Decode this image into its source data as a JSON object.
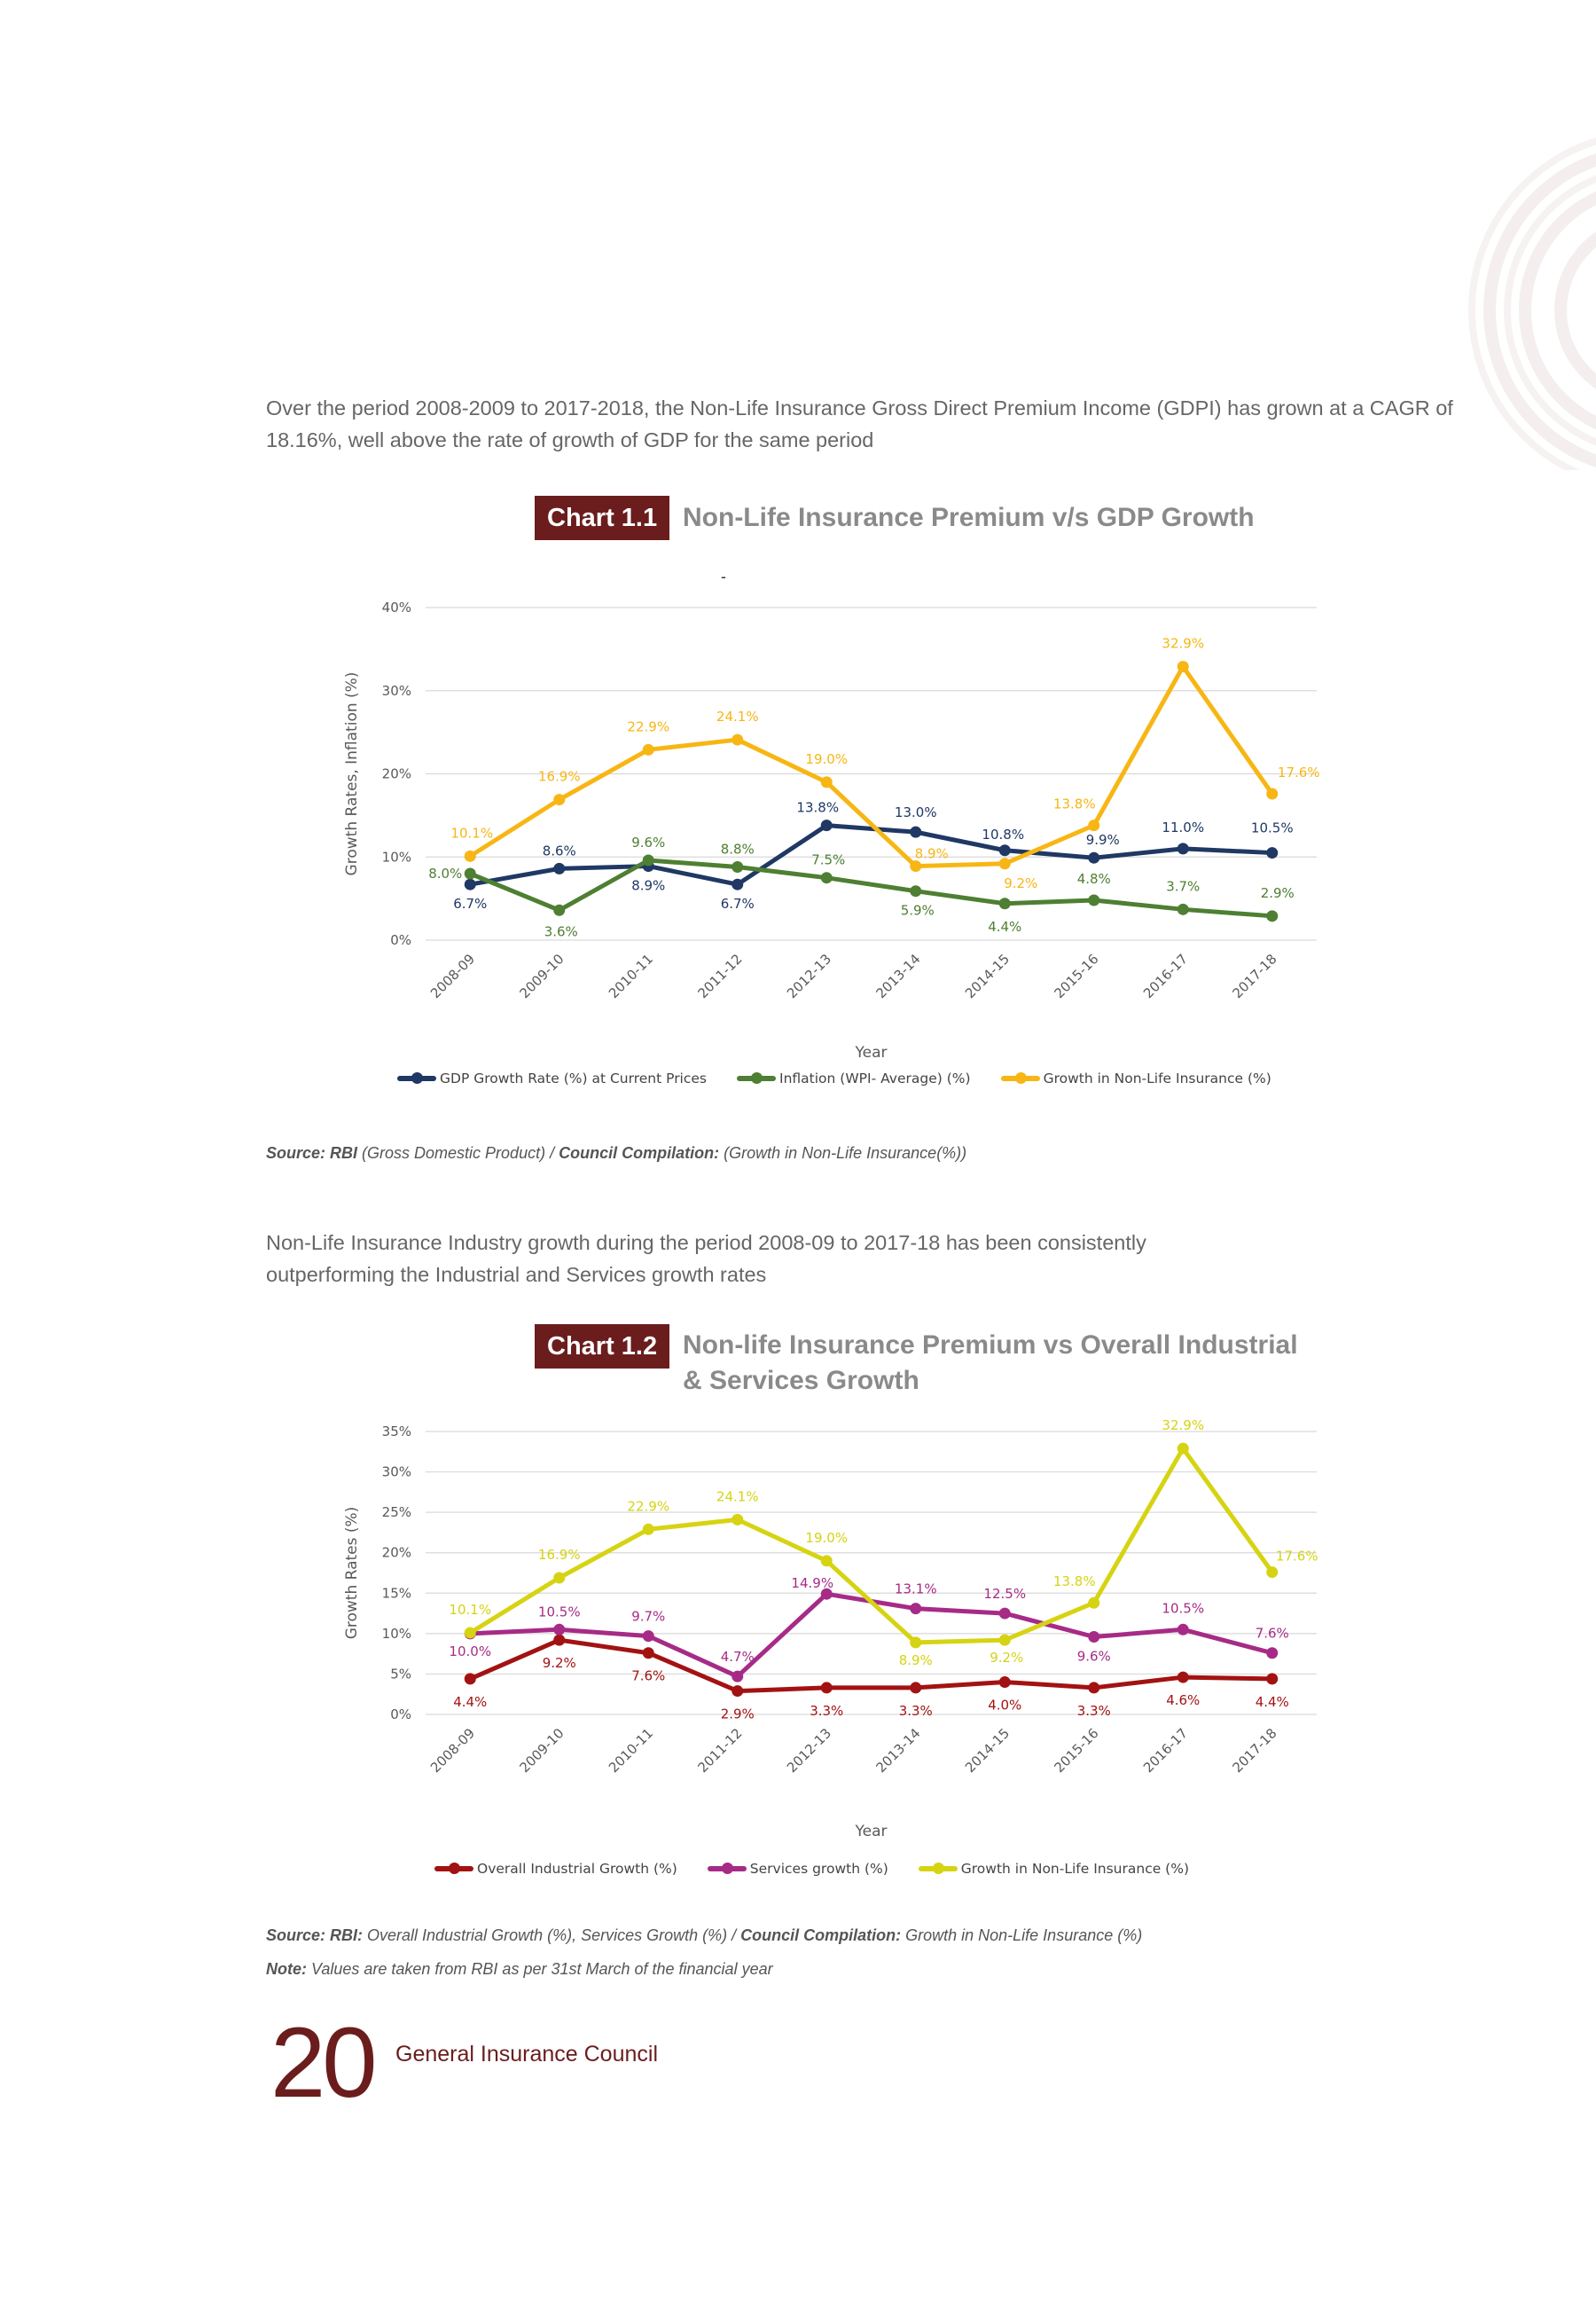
{
  "intro_text_1": "Over the period 2008-2009 to 2017-2018, the Non-Life Insurance Gross Direct Premium Income (GDPI) has grown at a CAGR of 18.16%, well above the rate of growth of GDP for the same period",
  "intro_text_2": "Non-Life Insurance Industry growth during the period 2008-09 to 2017-18 has been consistently outperforming the Industrial and Services growth rates",
  "chart1_badge": "Chart 1.1",
  "chart2_badge": "Chart 1.2",
  "chart1_dash": "-",
  "source1": {
    "label1": "Source: RBI",
    "text1": " (Gross Domestic Product) / ",
    "label2": "Council Compilation:",
    "text2": " (Growth in Non-Life Insurance(%))"
  },
  "source2": {
    "label1": "Source: RBI:",
    "text1": " Overall Industrial Growth (%), Services Growth (%) / ",
    "label2": "Council Compilation:",
    "text2": " Growth in Non-Life Insurance (%)"
  },
  "note": {
    "label": "Note:",
    "text": " Values are taken from RBI as per 31st March of the financial year"
  },
  "footer": {
    "page_number": "20",
    "title": "General Insurance Council"
  },
  "chart_data": [
    {
      "type": "line",
      "title": "Non-Life Insurance Premium v/s GDP Growth",
      "xlabel": "Year",
      "ylabel": "Growth Rates, Inflation (%)",
      "ylim": [
        0,
        40
      ],
      "yticks": [
        "0%",
        "10%",
        "20%",
        "30%",
        "40%"
      ],
      "grid": true,
      "legend_position": "bottom",
      "categories": [
        "2008-09",
        "2009-10",
        "2010-11",
        "2011-12",
        "2012-13",
        "2013-14",
        "2014-15",
        "2015-16",
        "2016-17",
        "2017-18"
      ],
      "series": [
        {
          "name": "GDP Growth Rate (%) at Current Prices",
          "color": "#1f3864",
          "values": [
            6.7,
            8.6,
            8.9,
            6.7,
            13.8,
            13.0,
            10.8,
            9.9,
            11.0,
            10.5
          ],
          "labels": [
            "6.7%",
            "8.6%",
            "8.9%",
            "6.7%",
            "13.8%",
            "13.0%",
            "10.8%",
            "9.9%",
            "11.0%",
            "10.5%"
          ]
        },
        {
          "name": "Inflation (WPI- Average) (%)",
          "color": "#4e7f32",
          "values": [
            8.0,
            3.6,
            9.6,
            8.8,
            7.5,
            5.9,
            4.4,
            4.8,
            3.7,
            2.9
          ],
          "labels": [
            "8.0%",
            "3.6%",
            "9.6%",
            "8.8%",
            "7.5%",
            "5.9%",
            "4.4%",
            "4.8%",
            "3.7%",
            "2.9%"
          ]
        },
        {
          "name": "Growth in Non-Life Insurance (%)",
          "color": "#f7b614",
          "values": [
            10.1,
            16.9,
            22.9,
            24.1,
            19.0,
            8.9,
            9.2,
            13.8,
            32.9,
            17.6
          ],
          "labels": [
            "10.1%",
            "16.9%",
            "22.9%",
            "24.1%",
            "19.0%",
            "8.9%",
            "9.2%",
            "13.8%",
            "32.9%",
            "17.6%"
          ]
        }
      ]
    },
    {
      "type": "line",
      "title": "Non-life Insurance Premium vs Overall Industrial & Services Growth",
      "xlabel": "Year",
      "ylabel": "Growth Rates (%)",
      "ylim": [
        0,
        35
      ],
      "yticks": [
        "0%",
        "5%",
        "10%",
        "15%",
        "20%",
        "25%",
        "30%",
        "35%"
      ],
      "grid": true,
      "legend_position": "bottom",
      "categories": [
        "2008-09",
        "2009-10",
        "2010-11",
        "2011-12",
        "2012-13",
        "2013-14",
        "2014-15",
        "2015-16",
        "2016-17",
        "2017-18"
      ],
      "series": [
        {
          "name": "Overall Industrial Growth (%)",
          "color": "#a31212",
          "values": [
            4.4,
            9.2,
            7.6,
            2.9,
            3.3,
            3.3,
            4.0,
            3.3,
            4.6,
            4.4
          ],
          "labels": [
            "4.4%",
            "9.2%",
            "7.6%",
            "2.9%",
            "3.3%",
            "3.3%",
            "4.0%",
            "3.3%",
            "4.6%",
            "4.4%"
          ]
        },
        {
          "name": "Services growth (%)",
          "color": "#a62b86",
          "values": [
            10.0,
            10.5,
            9.7,
            4.7,
            14.9,
            13.1,
            12.5,
            9.6,
            10.5,
            7.6
          ],
          "labels": [
            "10.0%",
            "10.5%",
            "9.7%",
            "4.7%",
            "14.9%",
            "13.1%",
            "12.5%",
            "9.6%",
            "10.5%",
            "7.6%"
          ]
        },
        {
          "name": "Growth in Non-Life Insurance (%)",
          "color": "#d6d312",
          "values": [
            10.1,
            16.9,
            22.9,
            24.1,
            19.0,
            8.9,
            9.2,
            13.8,
            32.9,
            17.6
          ],
          "labels": [
            "10.1%",
            "16.9%",
            "22.9%",
            "24.1%",
            "19.0%",
            "8.9%",
            "9.2%",
            "13.8%",
            "32.9%",
            "17.6%"
          ]
        }
      ]
    }
  ]
}
